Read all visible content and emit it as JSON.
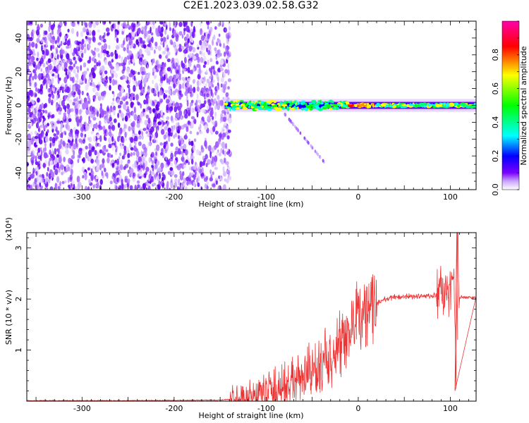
{
  "title": "C2E1.2023.039.02.58.G32",
  "chart_data": [
    {
      "type": "heatmap",
      "xlabel": "Height of straight line (km)",
      "ylabel": "Frequency (Hz)",
      "xlim": [
        -360,
        128
      ],
      "ylim": [
        -50,
        50
      ],
      "xticks": [
        -300,
        -200,
        -100,
        0,
        100
      ],
      "yticks": [
        -40,
        -20,
        0,
        20,
        40
      ],
      "colorbar": {
        "label": "Normalized spectral amplitude",
        "range": [
          0,
          1
        ],
        "ticks": [
          0.0,
          0.2,
          0.4,
          0.6,
          0.8
        ],
        "colormap": [
          "#ffffff",
          "#b066ff",
          "#6600ff",
          "#0000ff",
          "#00ffff",
          "#00ff00",
          "#ffff00",
          "#ff0000",
          "#ff00aa"
        ]
      },
      "features": {
        "noise_region_x": [
          -360,
          -145
        ],
        "echo_band_x": [
          -145,
          128
        ],
        "echo_band_center_hz": 0,
        "peak_amplitude_x": [
          -10,
          20
        ]
      },
      "grid": false
    },
    {
      "type": "line",
      "xlabel": "Height of straight line (km)",
      "ylabel": "SNR (10 * v/v)",
      "y_multiplier": "(x10⁴)",
      "xlim": [
        -360,
        128
      ],
      "ylim": [
        0,
        3.3
      ],
      "xticks": [
        -300,
        -200,
        -100,
        0,
        100
      ],
      "yticks": [
        1,
        2,
        3
      ],
      "color": "#ee3333",
      "series": [
        {
          "x": [
            -360,
            -250,
            -150,
            -130,
            -110,
            -90,
            -70,
            -50,
            -40,
            -30,
            -20,
            -15,
            -10,
            -5,
            0,
            10,
            20,
            30,
            40,
            50,
            60,
            70,
            80,
            90,
            95,
            100,
            104,
            106,
            108,
            110,
            115,
            128
          ],
          "y": [
            0.01,
            0.01,
            0.02,
            0.05,
            0.12,
            0.22,
            0.35,
            0.55,
            0.7,
            0.85,
            1.0,
            1.1,
            1.3,
            1.5,
            1.65,
            1.8,
            1.92,
            2.0,
            2.04,
            2.05,
            2.05,
            2.06,
            2.06,
            2.07,
            2.1,
            2.2,
            2.7,
            0.2,
            3.3,
            2.05,
            2.03,
            2.03
          ]
        }
      ],
      "grid": false
    }
  ]
}
